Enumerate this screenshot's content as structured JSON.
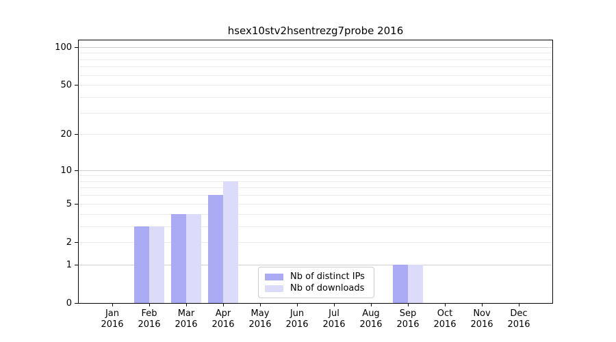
{
  "title": "hsex10stv2hsentrezg7probe 2016",
  "legend": {
    "items": [
      {
        "label": "Nb of distinct IPs",
        "color": "#aaaaf5"
      },
      {
        "label": "Nb of downloads",
        "color": "#dcdcfa"
      }
    ]
  },
  "colors": {
    "bar_distinct_ips": "#aaaaf5",
    "bar_downloads": "#dcdcfa",
    "major_grid": "#cfcfcf",
    "minor_grid": "#ebebeb",
    "spine": "#000000",
    "background": "#ffffff"
  },
  "chart_data": {
    "type": "bar",
    "title": "hsex10stv2hsentrezg7probe 2016",
    "categories": [
      "Jan",
      "Feb",
      "Mar",
      "Apr",
      "May",
      "Jun",
      "Jul",
      "Aug",
      "Sep",
      "Oct",
      "Nov",
      "Dec"
    ],
    "year_label": "2016",
    "series": [
      {
        "name": "Nb of distinct IPs",
        "color": "#aaaaf5",
        "values": [
          0,
          3,
          4,
          6,
          0,
          0,
          0,
          0,
          1,
          0,
          0,
          0
        ]
      },
      {
        "name": "Nb of downloads",
        "color": "#dcdcfa",
        "values": [
          0,
          3,
          4,
          8,
          0,
          0,
          0,
          0,
          1,
          0,
          0,
          0
        ]
      }
    ],
    "yscale": "log1p",
    "ylim": [
      0,
      113
    ],
    "yticks": [
      0,
      1,
      2,
      5,
      10,
      20,
      50,
      100
    ],
    "major_gridlines": [
      1,
      10,
      100
    ],
    "minor_gridlines": [
      2,
      3,
      4,
      5,
      6,
      7,
      8,
      9,
      20,
      30,
      40,
      50,
      60,
      70,
      80,
      90
    ],
    "xlabel": "",
    "ylabel": "",
    "grid": true,
    "legend_position": "lower-center-inside"
  }
}
